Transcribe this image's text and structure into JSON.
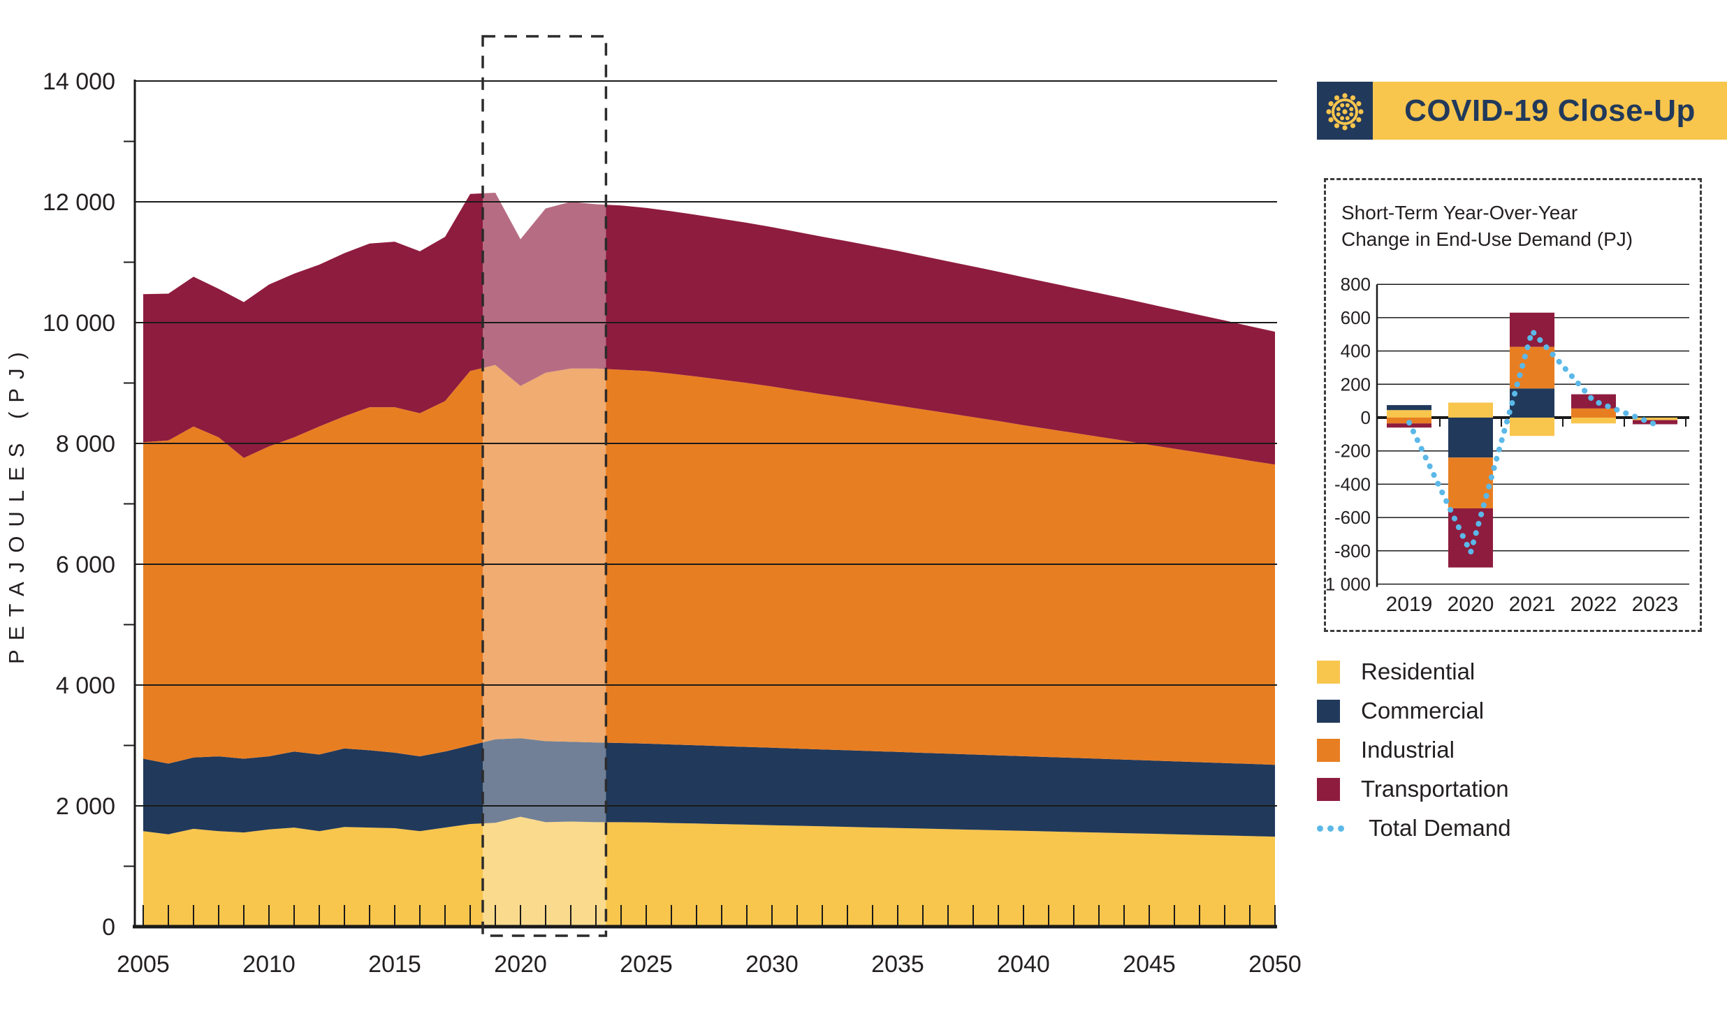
{
  "colors": {
    "residential": "#F8C54D",
    "commercial": "#21395B",
    "industrial": "#E87E22",
    "transportation": "#8E1C3E",
    "total_demand_line": "#5BB8E8",
    "text": "#231F20",
    "grid": "#1A1A1A",
    "badge_bg": "#F8C54D",
    "badge_fg": "#21395B"
  },
  "badge": {
    "label": "COVID-19 Close-Up",
    "icon": "virus-icon"
  },
  "inset": {
    "title_line1": "Short-Term Year-Over-Year",
    "title_line2": "Change in End-Use Demand (PJ)"
  },
  "legend": {
    "items": [
      {
        "label": "Residential",
        "color_key": "residential",
        "type": "swatch"
      },
      {
        "label": "Commercial",
        "color_key": "commercial",
        "type": "swatch"
      },
      {
        "label": "Industrial",
        "color_key": "industrial",
        "type": "swatch"
      },
      {
        "label": "Transportation",
        "color_key": "transportation",
        "type": "swatch"
      },
      {
        "label": "Total Demand",
        "color_key": "total_demand_line",
        "type": "dotted-line"
      }
    ]
  },
  "chart_data": [
    {
      "type": "area",
      "stacked": true,
      "title": "",
      "xlabel": "",
      "ylabel": "PETAJOULES (PJ)",
      "ylim": [
        0,
        14000
      ],
      "ytick_step": 2000,
      "ytick_minor_step": 1000,
      "grid": true,
      "x": [
        2005,
        2006,
        2007,
        2008,
        2009,
        2010,
        2011,
        2012,
        2013,
        2014,
        2015,
        2016,
        2017,
        2018,
        2019,
        2020,
        2021,
        2022,
        2023,
        2024,
        2025,
        2026,
        2027,
        2028,
        2029,
        2030,
        2031,
        2032,
        2033,
        2034,
        2035,
        2036,
        2037,
        2038,
        2039,
        2040,
        2041,
        2042,
        2043,
        2044,
        2045,
        2046,
        2047,
        2048,
        2049,
        2050
      ],
      "xtick_labeled": [
        2005,
        2010,
        2015,
        2020,
        2025,
        2030,
        2035,
        2040,
        2045,
        2050
      ],
      "series": [
        {
          "name": "Residential",
          "color_key": "residential",
          "values": [
            1580,
            1530,
            1620,
            1580,
            1560,
            1610,
            1640,
            1580,
            1650,
            1640,
            1630,
            1580,
            1640,
            1700,
            1720,
            1820,
            1730,
            1740,
            1730,
            1730,
            1725,
            1716,
            1707,
            1698,
            1689,
            1680,
            1671,
            1661,
            1652,
            1642,
            1633,
            1624,
            1614,
            1605,
            1595,
            1586,
            1577,
            1567,
            1558,
            1548,
            1539,
            1529,
            1519,
            1510,
            1500,
            1490
          ]
        },
        {
          "name": "Commercial",
          "color_key": "commercial",
          "values": [
            1200,
            1170,
            1180,
            1240,
            1220,
            1210,
            1260,
            1270,
            1300,
            1280,
            1250,
            1240,
            1260,
            1300,
            1380,
            1300,
            1340,
            1320,
            1320,
            1310,
            1305,
            1300,
            1296,
            1291,
            1287,
            1282,
            1277,
            1273,
            1268,
            1264,
            1259,
            1254,
            1250,
            1245,
            1241,
            1236,
            1231,
            1227,
            1222,
            1218,
            1213,
            1208,
            1204,
            1199,
            1195,
            1190
          ]
        },
        {
          "name": "Industrial",
          "color_key": "industrial",
          "values": [
            5240,
            5350,
            5480,
            5280,
            4980,
            5130,
            5200,
            5430,
            5500,
            5680,
            5720,
            5680,
            5800,
            6200,
            6200,
            5830,
            6100,
            6180,
            6190,
            6180,
            6170,
            6140,
            6105,
            6065,
            6025,
            5980,
            5930,
            5880,
            5835,
            5785,
            5735,
            5685,
            5635,
            5585,
            5535,
            5480,
            5430,
            5380,
            5330,
            5280,
            5225,
            5175,
            5125,
            5075,
            5020,
            4970
          ]
        },
        {
          "name": "Transportation",
          "color_key": "transportation",
          "values": [
            2450,
            2430,
            2480,
            2460,
            2580,
            2680,
            2710,
            2680,
            2700,
            2710,
            2740,
            2680,
            2720,
            2930,
            2850,
            2430,
            2720,
            2760,
            2720,
            2720,
            2700,
            2688,
            2676,
            2664,
            2652,
            2640,
            2624,
            2608,
            2592,
            2576,
            2560,
            2538,
            2516,
            2494,
            2472,
            2450,
            2426,
            2402,
            2378,
            2354,
            2330,
            2304,
            2278,
            2252,
            2226,
            2200
          ]
        }
      ],
      "highlight_box": {
        "x_start": 2018.5,
        "x_end": 2023.4
      }
    },
    {
      "type": "bar",
      "stacked": true,
      "title": "Short-Term Year-Over-Year Change in End-Use Demand (PJ)",
      "categories": [
        "2019",
        "2020",
        "2021",
        "2022",
        "2023"
      ],
      "ylim": [
        -1000,
        800
      ],
      "ytick_step": 200,
      "grid": true,
      "series": [
        {
          "name": "Residential",
          "color_key": "residential",
          "values": [
            45,
            90,
            -110,
            -35,
            -15
          ]
        },
        {
          "name": "Commercial",
          "color_key": "commercial",
          "values": [
            30,
            -240,
            175,
            0,
            0
          ]
        },
        {
          "name": "Industrial",
          "color_key": "industrial",
          "values": [
            -35,
            -305,
            250,
            55,
            0
          ]
        },
        {
          "name": "Transportation",
          "color_key": "transportation",
          "values": [
            -25,
            -355,
            205,
            85,
            -25
          ]
        }
      ],
      "line_series": {
        "name": "Total Demand",
        "color_key": "total_demand_line",
        "style": "dotted",
        "values": [
          -30,
          -810,
          520,
          100,
          -40
        ]
      }
    }
  ]
}
